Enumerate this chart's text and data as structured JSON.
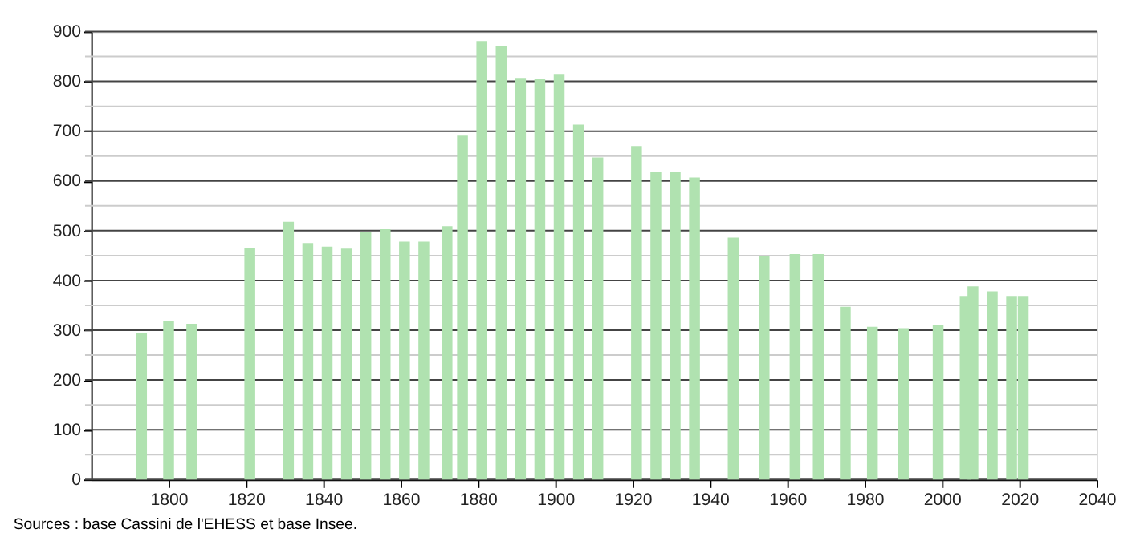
{
  "chart_data": {
    "type": "bar",
    "x": [
      1793,
      1800,
      1806,
      1821,
      1831,
      1836,
      1841,
      1846,
      1851,
      1856,
      1861,
      1866,
      1872,
      1876,
      1881,
      1886,
      1891,
      1896,
      1901,
      1906,
      1911,
      1921,
      1926,
      1931,
      1936,
      1946,
      1954,
      1962,
      1968,
      1975,
      1982,
      1990,
      1999,
      2006,
      2008,
      2013,
      2018,
      2021
    ],
    "series": [
      {
        "color": "#b0e2b0",
        "values": [
          295,
          319,
          313,
          466,
          518,
          475,
          468,
          464,
          498,
          503,
          478,
          478,
          509,
          691,
          881,
          871,
          807,
          804,
          815,
          713,
          647,
          670,
          618,
          618,
          607,
          486,
          450,
          453,
          453,
          347,
          307,
          304,
          310,
          369,
          388,
          378,
          369,
          369
        ]
      }
    ],
    "xlim": [
      1780,
      2040
    ],
    "xticks": [
      1800,
      1820,
      1840,
      1860,
      1880,
      1900,
      1920,
      1940,
      1960,
      1980,
      2000,
      2020,
      2040
    ],
    "ylim": [
      0,
      900
    ],
    "yticks": [
      0,
      {
        "value": 50,
        "label": null
      },
      100,
      {
        "value": 150,
        "label": null
      },
      200,
      {
        "value": 250,
        "label": null
      },
      300,
      {
        "value": 350,
        "label": null
      },
      400,
      {
        "value": 450,
        "label": null
      },
      500,
      {
        "value": 550,
        "label": null
      },
      600,
      {
        "value": 650,
        "label": null
      },
      700,
      {
        "value": 750,
        "label": null
      },
      800,
      {
        "value": 850,
        "label": null
      },
      900
    ],
    "grid": "y",
    "annotations": [
      "Sources : base Cassini de l'EHESS et base Insee."
    ]
  }
}
